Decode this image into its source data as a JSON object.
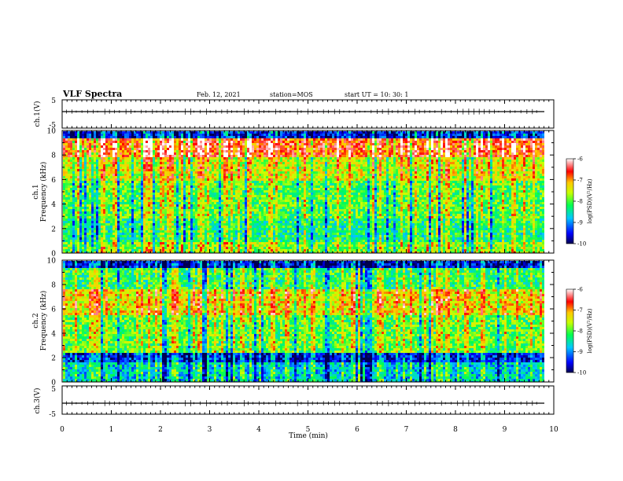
{
  "header": {
    "title": "VLF Spectra",
    "date": "Feb. 12, 2021",
    "station": "station=MOS",
    "start": "start UT =  10: 30: 1"
  },
  "chart_data": [
    {
      "type": "line",
      "name": "ch1-waveform",
      "ylabel": "ch.1(V)",
      "ylim": [
        -5,
        5
      ],
      "yticks": [
        "5",
        "-5"
      ],
      "xlim": [
        0,
        10
      ],
      "level": 0
    },
    {
      "type": "heatmap",
      "name": "ch1-spectrogram",
      "ylabel": [
        "ch.1",
        "Frequency (kHz)"
      ],
      "ylim": [
        0,
        10
      ],
      "yticks": [
        "0",
        "2",
        "4",
        "6",
        "8",
        "10"
      ],
      "xlim": [
        0,
        10
      ],
      "data_end_min": 9.8,
      "colorbar": {
        "label": "log(PSD)(V²/Hz)",
        "range": [
          -10,
          -6
        ],
        "ticks": [
          "-6",
          "-7",
          "-8",
          "-9",
          "-10"
        ]
      }
    },
    {
      "type": "heatmap",
      "name": "ch2-spectrogram",
      "ylabel": [
        "ch.2",
        "Frequency (kHz)"
      ],
      "ylim": [
        0,
        10
      ],
      "yticks": [
        "0",
        "2",
        "4",
        "6",
        "8",
        "10"
      ],
      "xlim": [
        0,
        10
      ],
      "data_end_min": 9.8,
      "colorbar": {
        "label": "log(PSD)(V²/Hz)",
        "range": [
          -10,
          -6
        ],
        "ticks": [
          "-6",
          "-7",
          "-8",
          "-9",
          "-10"
        ]
      }
    },
    {
      "type": "line",
      "name": "ch3-waveform",
      "ylabel": "ch.3(V)",
      "ylim": [
        -5,
        5
      ],
      "yticks": [
        "5",
        "-5"
      ],
      "xlim": [
        0,
        10
      ],
      "level": 0,
      "xlabel": "Time (min)",
      "xticks": [
        "0",
        "1",
        "2",
        "3",
        "4",
        "5",
        "6",
        "7",
        "8",
        "9",
        "10"
      ]
    }
  ]
}
